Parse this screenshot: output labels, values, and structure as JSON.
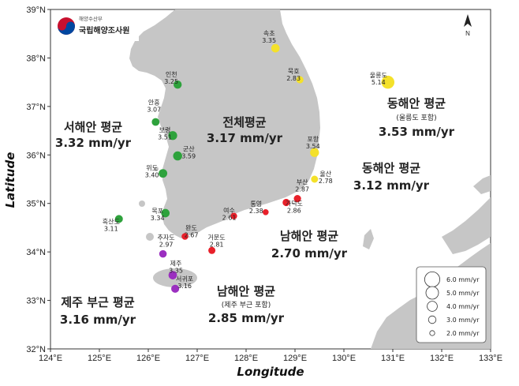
{
  "logo": {
    "ministry": "해양수산부",
    "agency": "국립해양조사원"
  },
  "axes": {
    "xlabel": "Longitude",
    "ylabel": "Latitude",
    "x_ticks": [
      "124°E",
      "125°E",
      "126°E",
      "127°E",
      "128°E",
      "129°E",
      "130°E",
      "131°E",
      "132°E",
      "133°E"
    ],
    "y_ticks": [
      "32°N",
      "33°N",
      "34°N",
      "35°N",
      "36°N",
      "37°N",
      "38°N",
      "39°N"
    ],
    "lon_range": [
      124,
      133
    ],
    "lat_range": [
      32,
      39
    ]
  },
  "north_arrow": "N",
  "regions": [
    {
      "id": "west",
      "title": "서해안 평균",
      "value": "3.32 mm/yr",
      "sub": ""
    },
    {
      "id": "all",
      "title": "전체평균",
      "value": "3.17 mm/yr",
      "sub": ""
    },
    {
      "id": "east_ulleung",
      "title": "동해안 평균",
      "value": "3.53 mm/yr",
      "sub": "(울릉도 포함)"
    },
    {
      "id": "east",
      "title": "동해안 평균",
      "value": "3.12 mm/yr",
      "sub": ""
    },
    {
      "id": "south",
      "title": "남해안 평균",
      "value": "2.70 mm/yr",
      "sub": ""
    },
    {
      "id": "south_jeju",
      "title": "남해안 평균",
      "value": "2.85 mm/yr",
      "sub": "(제주 부근 포함)"
    },
    {
      "id": "jeju",
      "title": "제주 부근 평균",
      "value": "3.16 mm/yr",
      "sub": ""
    }
  ],
  "stations": [
    {
      "name": "속초",
      "value": 3.35,
      "lon": 128.6,
      "lat": 38.2,
      "group": "east",
      "color": "#f4e12a"
    },
    {
      "name": "묵호",
      "value": 2.83,
      "lon": 129.1,
      "lat": 37.55,
      "group": "east",
      "color": "#f4e12a"
    },
    {
      "name": "포항",
      "value": 3.54,
      "lon": 129.4,
      "lat": 36.05,
      "group": "east",
      "color": "#f4e12a"
    },
    {
      "name": "울산",
      "value": 2.78,
      "lon": 129.4,
      "lat": 35.5,
      "group": "east",
      "color": "#f4e12a"
    },
    {
      "name": "울릉도",
      "value": 5.14,
      "lon": 130.9,
      "lat": 37.5,
      "group": "east",
      "color": "#f4e12a"
    },
    {
      "name": "인천",
      "value": 3.25,
      "lon": 126.6,
      "lat": 37.45,
      "group": "west",
      "color": "#2ea23c"
    },
    {
      "name": "안흥",
      "value": 3.07,
      "lon": 126.15,
      "lat": 36.68,
      "group": "west",
      "color": "#2ea23c"
    },
    {
      "name": "보령",
      "value": 3.51,
      "lon": 126.5,
      "lat": 36.4,
      "group": "west",
      "color": "#2ea23c"
    },
    {
      "name": "군산",
      "value": 3.59,
      "lon": 126.6,
      "lat": 35.98,
      "group": "west",
      "color": "#2ea23c"
    },
    {
      "name": "위도",
      "value": 3.4,
      "lon": 126.3,
      "lat": 35.62,
      "group": "west",
      "color": "#2ea23c"
    },
    {
      "name": "목포",
      "value": 3.34,
      "lon": 126.35,
      "lat": 34.8,
      "group": "west",
      "color": "#2ea23c"
    },
    {
      "name": "흑산도",
      "value": 3.11,
      "lon": 125.4,
      "lat": 34.68,
      "group": "west",
      "color": "#2ea23c"
    },
    {
      "name": "부산",
      "value": 2.87,
      "lon": 129.05,
      "lat": 35.1,
      "group": "south",
      "color": "#e8202a"
    },
    {
      "name": "가덕도",
      "value": 2.86,
      "lon": 128.82,
      "lat": 35.02,
      "group": "south",
      "color": "#e8202a"
    },
    {
      "name": "통영",
      "value": 2.38,
      "lon": 128.4,
      "lat": 34.82,
      "group": "south",
      "color": "#e8202a"
    },
    {
      "name": "여수",
      "value": 2.61,
      "lon": 127.75,
      "lat": 34.74,
      "group": "south",
      "color": "#e8202a"
    },
    {
      "name": "거문도",
      "value": 2.81,
      "lon": 127.3,
      "lat": 34.03,
      "group": "south",
      "color": "#e8202a"
    },
    {
      "name": "완도",
      "value": 2.67,
      "lon": 126.75,
      "lat": 34.32,
      "group": "south",
      "color": "#e8202a"
    },
    {
      "name": "추자도",
      "value": 2.97,
      "lon": 126.3,
      "lat": 33.96,
      "group": "jeju",
      "color": "#9b2fc0"
    },
    {
      "name": "제주",
      "value": 3.35,
      "lon": 126.5,
      "lat": 33.52,
      "group": "jeju",
      "color": "#9b2fc0"
    },
    {
      "name": "서귀포",
      "value": 3.16,
      "lon": 126.55,
      "lat": 33.24,
      "group": "jeju",
      "color": "#9b2fc0"
    }
  ],
  "legend": [
    {
      "label": "6.0 mm/yr",
      "value": 6.0
    },
    {
      "label": "5.0 mm/yr",
      "value": 5.0
    },
    {
      "label": "4.0 mm/yr",
      "value": 4.0
    },
    {
      "label": "3.0 mm/yr",
      "value": 3.0
    },
    {
      "label": "2.0 mm/yr",
      "value": 2.0
    }
  ],
  "colors": {
    "sea": "#ffffff",
    "land": "#c6c6c6",
    "east": "#f4e12a",
    "west": "#2ea23c",
    "south": "#e8202a",
    "jeju": "#9b2fc0"
  }
}
